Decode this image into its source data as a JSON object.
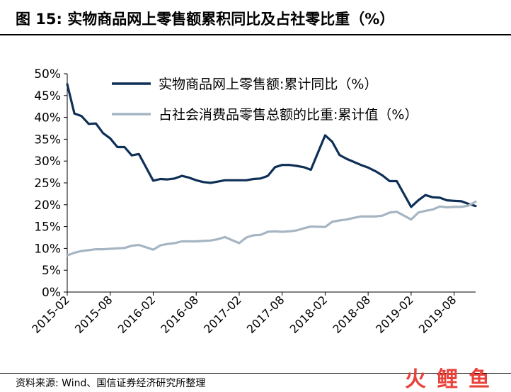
{
  "header": {
    "title": "图 15:  实物商品网上零售额累积同比及占社零比重（%）"
  },
  "footer": {
    "source": "资料来源: Wind、国信证券经济研究所整理"
  },
  "watermark": {
    "chars": [
      "火",
      "鲤",
      "鱼"
    ],
    "colors": [
      "#e8423a",
      "#e8423a",
      "#e8423a"
    ]
  },
  "colors": {
    "series1": "#0e2f56",
    "series2": "#a6b5c3"
  },
  "chart_data": {
    "type": "line",
    "title": "",
    "xlabel": "",
    "ylabel": "",
    "ylim": [
      0,
      50
    ],
    "y_ticks": [
      "0%",
      "5%",
      "10%",
      "15%",
      "20%",
      "25%",
      "30%",
      "35%",
      "40%",
      "45%",
      "50%"
    ],
    "x_tick_labels": [
      "2015-02",
      "2015-08",
      "2016-02",
      "2016-08",
      "2017-02",
      "2017-08",
      "2018-02",
      "2018-08",
      "2019-02",
      "2019-08"
    ],
    "grid": false,
    "legend_position": "top",
    "series": [
      {
        "name": "实物商品网上零售额:累计同比（%）",
        "points": [
          [
            "2015-02",
            47.6
          ],
          [
            "2015-03",
            40.9
          ],
          [
            "2015-04",
            40.3
          ],
          [
            "2015-05",
            38.5
          ],
          [
            "2015-06",
            38.6
          ],
          [
            "2015-07",
            36.4
          ],
          [
            "2015-08",
            35.2
          ],
          [
            "2015-09",
            33.2
          ],
          [
            "2015-10",
            33.2
          ],
          [
            "2015-11",
            31.3
          ],
          [
            "2015-12",
            31.6
          ],
          [
            "2016-02",
            25.5
          ],
          [
            "2016-03",
            25.9
          ],
          [
            "2016-04",
            25.8
          ],
          [
            "2016-05",
            26.0
          ],
          [
            "2016-06",
            26.6
          ],
          [
            "2016-07",
            26.2
          ],
          [
            "2016-08",
            25.6
          ],
          [
            "2016-09",
            25.2
          ],
          [
            "2016-10",
            25.0
          ],
          [
            "2016-11",
            25.3
          ],
          [
            "2016-12",
            25.6
          ],
          [
            "2017-02",
            25.6
          ],
          [
            "2017-03",
            25.6
          ],
          [
            "2017-04",
            25.9
          ],
          [
            "2017-05",
            26.0
          ],
          [
            "2017-06",
            26.6
          ],
          [
            "2017-07",
            28.6
          ],
          [
            "2017-08",
            29.1
          ],
          [
            "2017-09",
            29.1
          ],
          [
            "2017-10",
            28.9
          ],
          [
            "2017-11",
            28.6
          ],
          [
            "2017-12",
            28.0
          ],
          [
            "2018-02",
            35.9
          ],
          [
            "2018-03",
            34.4
          ],
          [
            "2018-04",
            31.4
          ],
          [
            "2018-05",
            30.5
          ],
          [
            "2018-06",
            29.8
          ],
          [
            "2018-07",
            29.1
          ],
          [
            "2018-08",
            28.5
          ],
          [
            "2018-09",
            27.7
          ],
          [
            "2018-10",
            26.7
          ],
          [
            "2018-11",
            25.4
          ],
          [
            "2018-12",
            25.4
          ],
          [
            "2019-02",
            19.5
          ],
          [
            "2019-03",
            21.0
          ],
          [
            "2019-04",
            22.2
          ],
          [
            "2019-05",
            21.7
          ],
          [
            "2019-06",
            21.6
          ],
          [
            "2019-07",
            21.0
          ],
          [
            "2019-08",
            20.9
          ],
          [
            "2019-09",
            20.8
          ],
          [
            "2019-10",
            20.2
          ],
          [
            "2019-11",
            19.7
          ]
        ]
      },
      {
        "name": "占社会消费品零售总额的比重:累计值（%）",
        "points": [
          [
            "2015-02",
            8.4
          ],
          [
            "2015-03",
            9.0
          ],
          [
            "2015-04",
            9.4
          ],
          [
            "2015-05",
            9.6
          ],
          [
            "2015-06",
            9.8
          ],
          [
            "2015-07",
            9.8
          ],
          [
            "2015-08",
            9.9
          ],
          [
            "2015-09",
            10.0
          ],
          [
            "2015-10",
            10.1
          ],
          [
            "2015-11",
            10.6
          ],
          [
            "2015-12",
            10.8
          ],
          [
            "2016-02",
            9.7
          ],
          [
            "2016-03",
            10.7
          ],
          [
            "2016-04",
            11.0
          ],
          [
            "2016-05",
            11.2
          ],
          [
            "2016-06",
            11.6
          ],
          [
            "2016-07",
            11.6
          ],
          [
            "2016-08",
            11.6
          ],
          [
            "2016-09",
            11.7
          ],
          [
            "2016-10",
            11.8
          ],
          [
            "2016-11",
            12.1
          ],
          [
            "2016-12",
            12.6
          ],
          [
            "2017-02",
            11.2
          ],
          [
            "2017-03",
            12.5
          ],
          [
            "2017-04",
            13.0
          ],
          [
            "2017-05",
            13.1
          ],
          [
            "2017-06",
            13.8
          ],
          [
            "2017-07",
            13.9
          ],
          [
            "2017-08",
            13.8
          ],
          [
            "2017-09",
            13.9
          ],
          [
            "2017-10",
            14.1
          ],
          [
            "2017-11",
            14.6
          ],
          [
            "2017-12",
            15.0
          ],
          [
            "2018-02",
            14.9
          ],
          [
            "2018-03",
            16.1
          ],
          [
            "2018-04",
            16.4
          ],
          [
            "2018-05",
            16.6
          ],
          [
            "2018-06",
            17.0
          ],
          [
            "2018-07",
            17.3
          ],
          [
            "2018-08",
            17.3
          ],
          [
            "2018-09",
            17.3
          ],
          [
            "2018-10",
            17.5
          ],
          [
            "2018-11",
            18.2
          ],
          [
            "2018-12",
            18.4
          ],
          [
            "2019-02",
            16.6
          ],
          [
            "2019-03",
            18.2
          ],
          [
            "2019-04",
            18.6
          ],
          [
            "2019-05",
            18.9
          ],
          [
            "2019-06",
            19.6
          ],
          [
            "2019-07",
            19.4
          ],
          [
            "2019-08",
            19.5
          ],
          [
            "2019-09",
            19.5
          ],
          [
            "2019-10",
            19.8
          ],
          [
            "2019-11",
            20.7
          ]
        ]
      }
    ]
  }
}
